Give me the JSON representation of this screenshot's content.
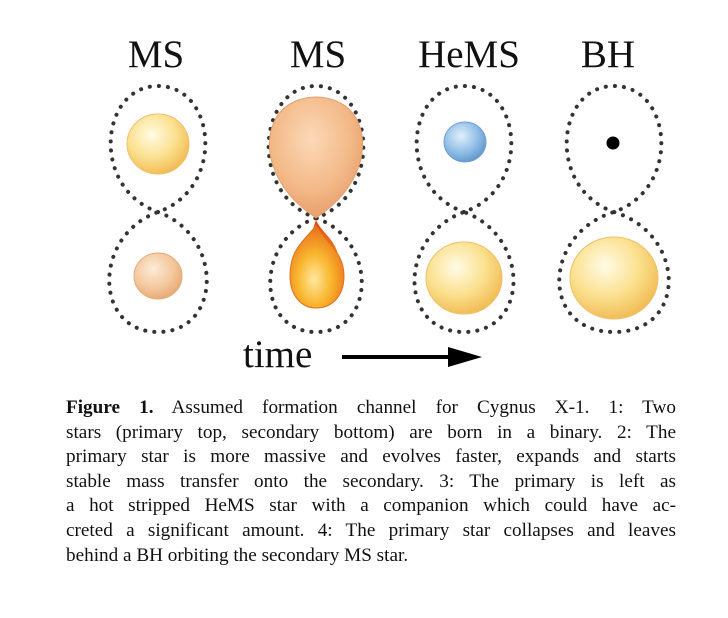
{
  "stages": [
    {
      "label": "MS"
    },
    {
      "label": "MS"
    },
    {
      "label": "HeMS"
    },
    {
      "label": "BH"
    }
  ],
  "time_label": "time",
  "caption": {
    "tag": "Figure 1.",
    "lines": [
      "Assumed formation channel for Cygnus X-1.  1: Two",
      "stars (primary top, secondary bottom) are born in a binary. 2: The",
      "primary star is more massive and evolves faster, expands and starts",
      "stable mass transfer onto the secondary.  3: The primary is left as",
      "a hot stripped HeMS star with a companion which could have ac-",
      "creted a significant amount. 4: The primary star collapses and leaves",
      "behind a BH orbiting the secondary MS star."
    ]
  },
  "colors": {
    "ms_primary": "#f7cf6e",
    "ms_secondary": "#f0b98a",
    "donor": "#f0a878",
    "accretor_fire": "#f39a1c",
    "hems": "#7fb2de",
    "bh": "#000000",
    "roche_dots": "#333333"
  }
}
